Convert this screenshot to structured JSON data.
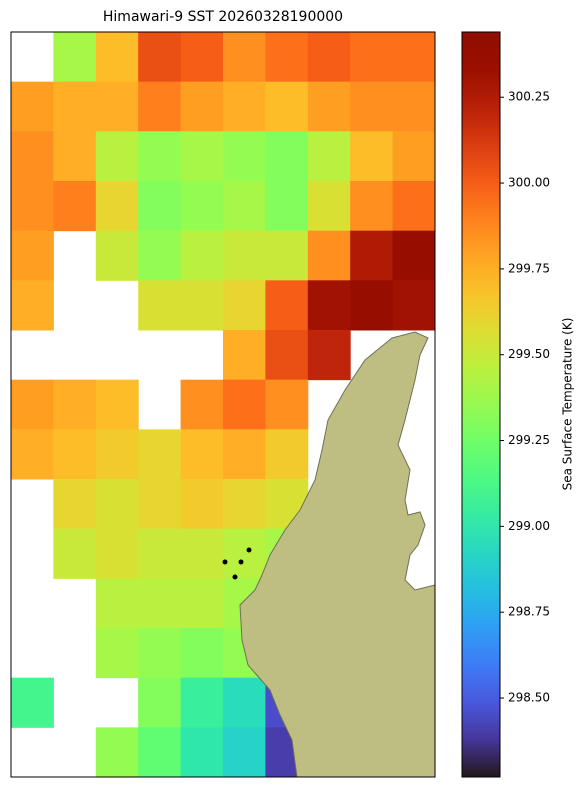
{
  "chart_data": {
    "type": "heatmap",
    "title": "Himawari-9 SST 20260328190000",
    "colorbar_label": "Sea Surface Temperature (K)",
    "clim": [
      298.27,
      300.44
    ],
    "cticks": [
      {
        "value": 298.5,
        "label": "298.50"
      },
      {
        "value": 298.75,
        "label": "298.75"
      },
      {
        "value": 299,
        "label": "299.00"
      },
      {
        "value": 299.25,
        "label": "299.25"
      },
      {
        "value": 299.5,
        "label": "299.50"
      },
      {
        "value": 299.75,
        "label": "299.75"
      },
      {
        "value": 300,
        "label": "300.00"
      },
      {
        "value": 300.25,
        "label": "300.25"
      }
    ],
    "grid": [
      [
        null,
        299.4,
        299.7,
        300.05,
        300.0,
        299.85,
        299.95,
        300.0,
        299.95,
        299.95
      ],
      [
        299.8,
        299.75,
        299.75,
        299.9,
        299.8,
        299.75,
        299.7,
        299.8,
        299.85,
        299.85
      ],
      [
        299.85,
        299.75,
        299.45,
        299.35,
        299.4,
        299.35,
        299.3,
        299.45,
        299.7,
        299.8
      ],
      [
        299.85,
        299.9,
        299.6,
        299.3,
        299.35,
        299.4,
        299.3,
        299.55,
        299.85,
        299.95
      ],
      [
        299.8,
        null,
        299.5,
        299.35,
        299.45,
        299.5,
        299.5,
        299.85,
        300.25,
        300.35
      ],
      [
        299.75,
        null,
        null,
        299.55,
        299.55,
        299.6,
        300.0,
        300.3,
        300.35,
        300.3
      ],
      [
        null,
        null,
        null,
        null,
        null,
        299.75,
        300.05,
        300.2,
        null,
        null
      ],
      [
        299.8,
        299.75,
        299.7,
        null,
        299.85,
        299.95,
        299.85,
        null,
        null,
        null
      ],
      [
        299.75,
        299.7,
        299.65,
        299.6,
        299.7,
        299.75,
        299.65,
        null,
        null,
        null
      ],
      [
        null,
        299.6,
        299.55,
        299.6,
        299.65,
        299.6,
        299.55,
        null,
        null,
        null
      ],
      [
        null,
        299.5,
        299.55,
        299.5,
        299.5,
        299.45,
        299.4,
        null,
        null,
        null
      ],
      [
        null,
        null,
        299.45,
        299.45,
        299.45,
        299.4,
        null,
        null,
        null,
        null
      ],
      [
        null,
        null,
        299.4,
        299.35,
        299.3,
        299.35,
        null,
        null,
        null,
        null
      ],
      [
        299.1,
        null,
        null,
        299.3,
        299.05,
        298.95,
        298.45,
        null,
        null,
        null
      ],
      [
        null,
        null,
        299.35,
        299.2,
        299.0,
        298.9,
        298.4,
        null,
        null,
        null
      ]
    ]
  }
}
